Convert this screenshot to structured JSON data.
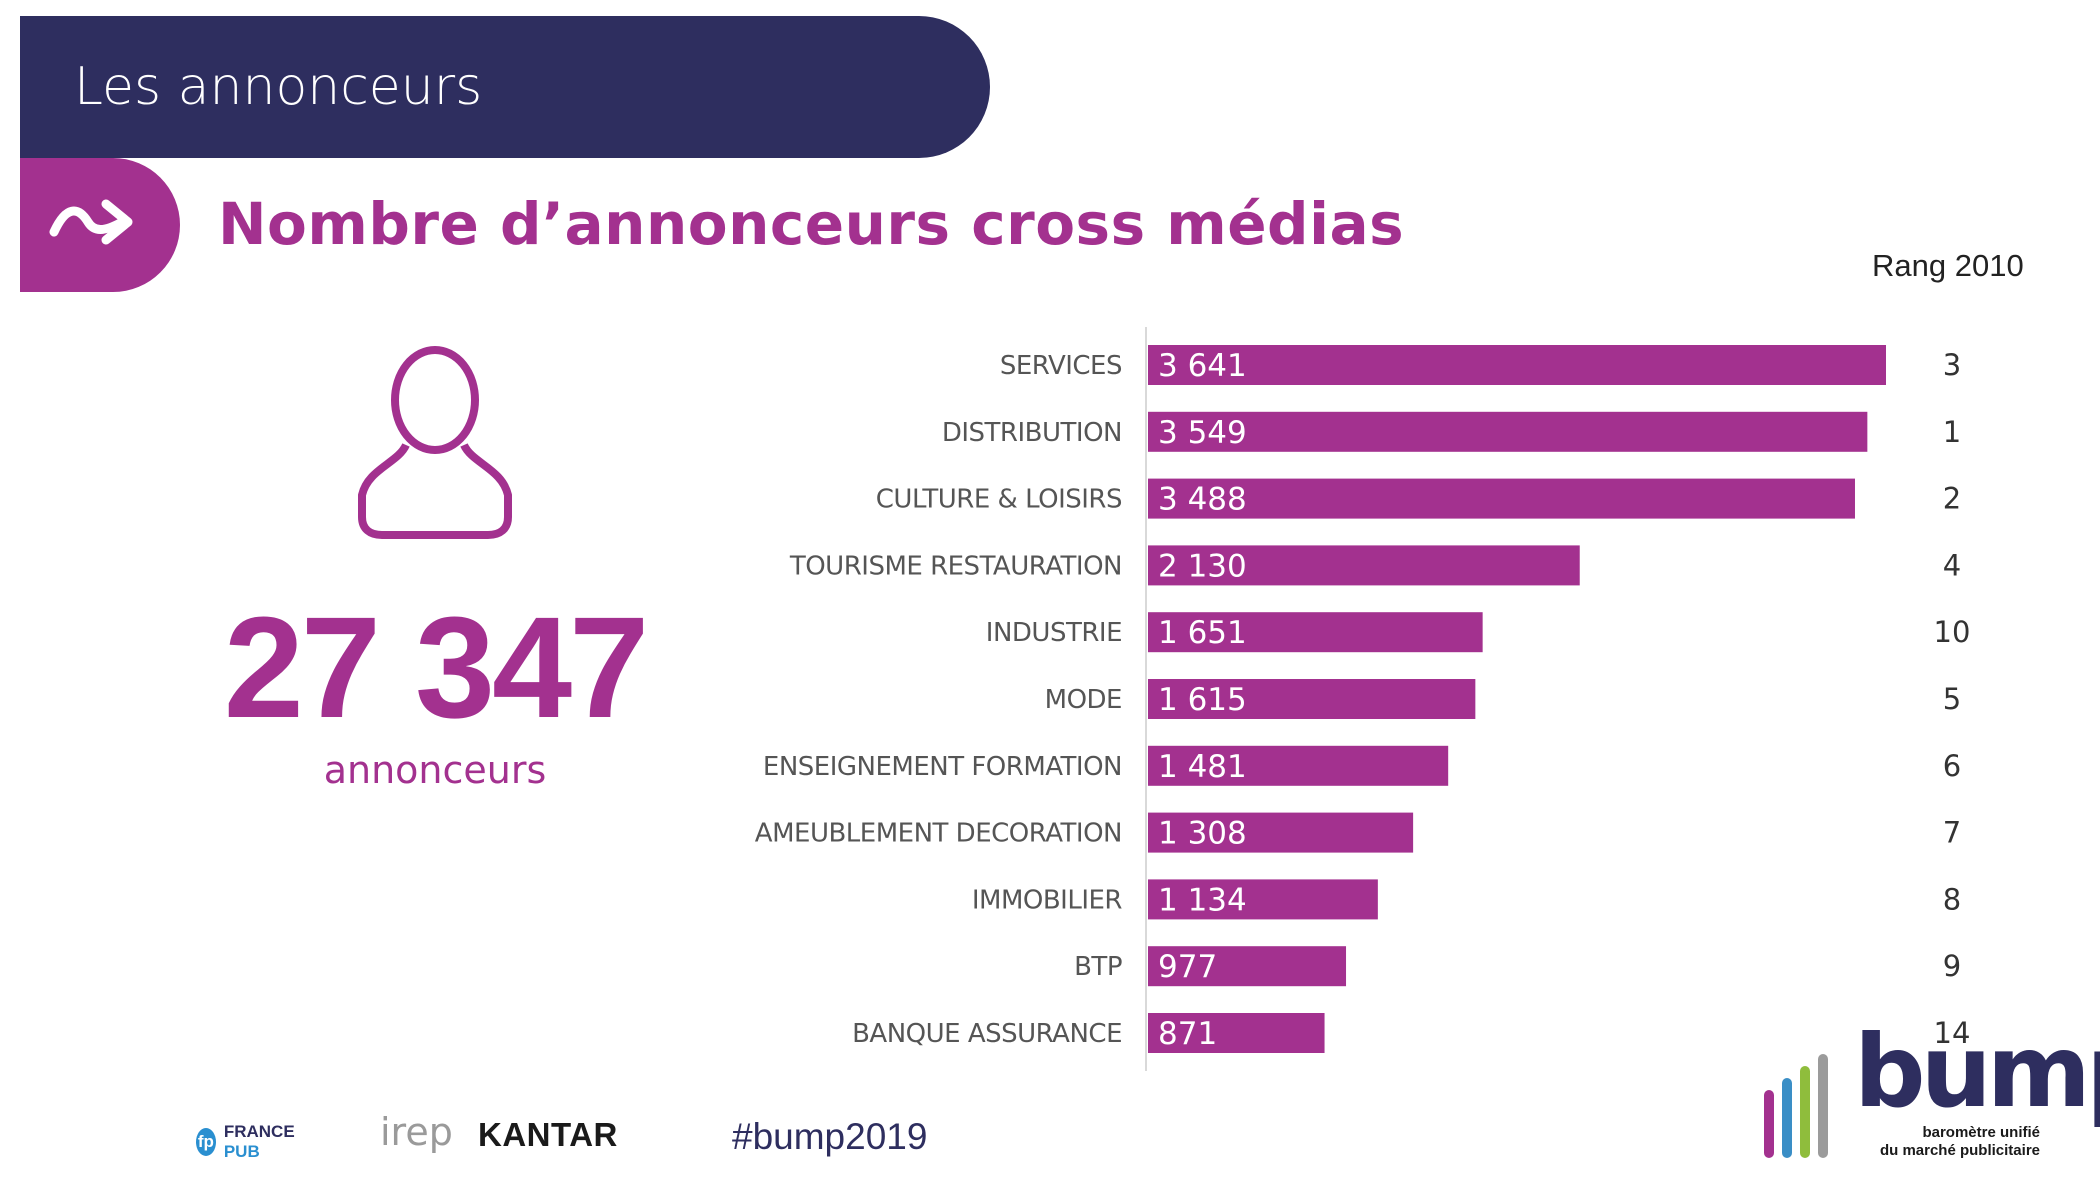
{
  "header": {
    "title": "Les annonceurs"
  },
  "subtitle": "Nombre d’annonceurs cross médias",
  "rank_header": "Rang 2010",
  "summary": {
    "total": "27 347",
    "total_label": "annonceurs"
  },
  "chart_data": {
    "type": "bar",
    "orientation": "horizontal",
    "categories": [
      "SERVICES",
      "DISTRIBUTION",
      "CULTURE & LOISIRS",
      "TOURISME RESTAURATION",
      "INDUSTRIE",
      "MODE",
      "ENSEIGNEMENT FORMATION",
      "AMEUBLEMENT DECORATION",
      "IMMOBILIER",
      "BTP",
      "BANQUE ASSURANCE"
    ],
    "values": [
      3641,
      3549,
      3488,
      2130,
      1651,
      1615,
      1481,
      1308,
      1134,
      977,
      871
    ],
    "value_labels": [
      "3 641",
      "3 549",
      "3 488",
      "2 130",
      "1 651",
      "1 615",
      "1 481",
      "1 308",
      "1 134",
      "977",
      "871"
    ],
    "ranks": [
      "3",
      "1",
      "2",
      "4",
      "10",
      "5",
      "6",
      "7",
      "8",
      "9",
      "14"
    ],
    "bar_color": "#a3318f",
    "grid": false,
    "legend": "none"
  },
  "footer": {
    "logos": {
      "francepub_france": "FRANCE",
      "francepub_pub": "PUB",
      "francepub_icon": "fp",
      "irep": "irep",
      "kantar": "KANTAR"
    },
    "hashtag": "#bump2019",
    "bump": {
      "word": "bump",
      "tagline_line1": "baromètre unifié",
      "tagline_line2": "du marché publicitaire"
    }
  },
  "colors": {
    "navy": "#2e2e5f",
    "purple": "#a3318f",
    "bump_bar_colors": [
      "#a3318f",
      "#3a8ec6",
      "#8fbd3c",
      "#9b9b9b"
    ]
  },
  "icons": {
    "arrow": "curved-arrow-right-icon",
    "person": "person-outline-icon"
  }
}
